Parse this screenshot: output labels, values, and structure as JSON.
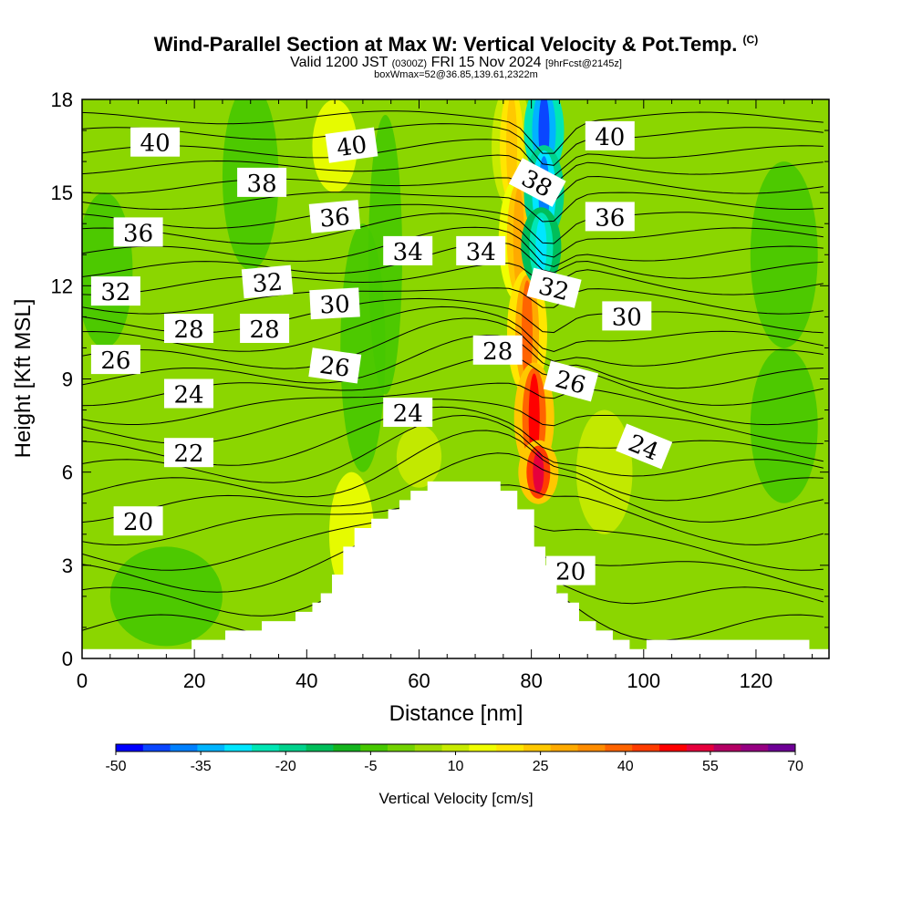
{
  "header": {
    "title": "Wind-Parallel Section at Max W: Vertical Velocity & Pot.Temp.",
    "copyright": "(C)",
    "valid_prefix": "Valid 1200 JST",
    "valid_utc": "(0300Z)",
    "valid_date": "FRI 15 Nov 2024",
    "forecast_info": "[9hrFcst@2145z]",
    "box_info": "boxWmax=52@36.85,139.61,2322m"
  },
  "colors": {
    "background_green": "#8bd600",
    "terrain_fill": "#ffffff",
    "contour_line": "#000000"
  },
  "chart_data": {
    "type": "heatmap",
    "title": "Wind-Parallel Section at Max W: Vertical Velocity & Pot.Temp.",
    "xlabel": "Distance [nm]",
    "ylabel": "Height [Kft MSL]",
    "xlim": [
      0,
      133
    ],
    "ylim": [
      0,
      18
    ],
    "xticks": [
      0,
      20,
      40,
      60,
      80,
      100,
      120
    ],
    "yticks": [
      0,
      3,
      6,
      9,
      12,
      15,
      18
    ],
    "colorbar": {
      "label": "Vertical Velocity [cm/s]",
      "levels": [
        -50,
        -45,
        -40,
        -35,
        -30,
        -25,
        -20,
        -15,
        -10,
        -5,
        0,
        5,
        10,
        15,
        20,
        25,
        30,
        35,
        40,
        45,
        50,
        55,
        60,
        65,
        70
      ],
      "tick_labels": [
        "-50",
        "-35",
        "-20",
        "-5",
        "10",
        "25",
        "40",
        "55",
        "70"
      ],
      "tick_values": [
        -50,
        -35,
        -20,
        -5,
        10,
        25,
        40,
        55,
        70
      ],
      "colors": [
        "#0000ff",
        "#0a46ff",
        "#0080ff",
        "#00b4ff",
        "#00e6ff",
        "#00e6b4",
        "#00d28c",
        "#00be5a",
        "#14b41e",
        "#46c800",
        "#72d200",
        "#a0dc00",
        "#c8eb00",
        "#f0ff00",
        "#ffe600",
        "#ffc800",
        "#ffaa00",
        "#ff8c00",
        "#ff6400",
        "#ff3c00",
        "#ff0000",
        "#e6003c",
        "#b40064",
        "#960082",
        "#6e0096"
      ]
    },
    "terrain": {
      "x": [
        0,
        19.5,
        19.5,
        25.5,
        25.5,
        32,
        32,
        38,
        38,
        41,
        41,
        42.5,
        42.5,
        44.5,
        44.5,
        46.5,
        46.5,
        48.5,
        48.5,
        51.5,
        51.5,
        54.5,
        54.5,
        56.5,
        56.5,
        58.5,
        58.5,
        61.5,
        61.5,
        74.5,
        74.5,
        77.5,
        77.5,
        80.5,
        80.5,
        82.5,
        82.5,
        84.5,
        84.5,
        86.5,
        86.5,
        88.5,
        88.5,
        91.5,
        91.5,
        94.5,
        94.5,
        97.5,
        97.5,
        100.5,
        100.5,
        129.5,
        129.5,
        133
      ],
      "height": [
        0.3,
        0.3,
        0.6,
        0.6,
        0.9,
        0.9,
        1.2,
        1.2,
        1.5,
        1.5,
        1.8,
        1.8,
        2.1,
        2.1,
        2.7,
        2.7,
        3.6,
        3.6,
        4.2,
        4.2,
        4.5,
        4.5,
        4.8,
        4.8,
        5.1,
        5.1,
        5.4,
        5.4,
        5.7,
        5.7,
        5.4,
        5.4,
        4.8,
        4.8,
        3.6,
        3.6,
        3.0,
        3.0,
        2.1,
        2.1,
        1.8,
        1.8,
        1.2,
        1.2,
        0.9,
        0.9,
        0.6,
        0.6,
        0.3,
        0.3,
        0.6,
        0.6,
        0.3,
        0.3
      ]
    },
    "velocity_features": [
      {
        "x": 30,
        "y": 15.5,
        "rx": 5,
        "ry": 3,
        "value": -5
      },
      {
        "x": 50,
        "y": 10,
        "rx": 4,
        "ry": 4,
        "value": -5
      },
      {
        "x": 54,
        "y": 13,
        "rx": 3,
        "ry": 4.5,
        "value": -5
      },
      {
        "x": 125,
        "y": 7.5,
        "rx": 6,
        "ry": 2.5,
        "value": -5
      },
      {
        "x": 125,
        "y": 13,
        "rx": 6,
        "ry": 3,
        "value": -5
      },
      {
        "x": 15,
        "y": 2,
        "rx": 10,
        "ry": 1.6,
        "value": -5
      },
      {
        "x": 4,
        "y": 12.5,
        "rx": 5,
        "ry": 2.5,
        "value": -5
      },
      {
        "x": 45,
        "y": 16.5,
        "rx": 4,
        "ry": 1.5,
        "value": 15
      },
      {
        "x": 48,
        "y": 4,
        "rx": 4,
        "ry": 2,
        "value": 15
      },
      {
        "x": 93,
        "y": 6,
        "rx": 5,
        "ry": 2,
        "value": 10
      },
      {
        "x": 60,
        "y": 6.5,
        "rx": 4,
        "ry": 1,
        "value": 10
      }
    ],
    "updraft_band": [
      {
        "x": 76,
        "y": 18,
        "value": 25
      },
      {
        "x": 77,
        "y": 15,
        "value": 30
      },
      {
        "x": 78.5,
        "y": 12,
        "value": 35
      },
      {
        "x": 80,
        "y": 9,
        "value": 45
      },
      {
        "x": 81,
        "y": 6.5,
        "value": 55
      },
      {
        "x": 81.5,
        "y": 5.5,
        "value": 60
      }
    ],
    "downdraft_band": [
      {
        "x": 82,
        "y": 18,
        "value": -45
      },
      {
        "x": 82.5,
        "y": 16,
        "value": -40
      },
      {
        "x": 82,
        "y": 14,
        "value": -35
      },
      {
        "x": 81.5,
        "y": 12.5,
        "value": -20
      }
    ],
    "theta_contour_labels": [
      {
        "text": "40",
        "x": 13,
        "y": 16.6,
        "rot": 0
      },
      {
        "text": "40",
        "x": 48,
        "y": 16.5,
        "rot": -8
      },
      {
        "text": "40",
        "x": 94,
        "y": 16.8,
        "rot": 0
      },
      {
        "text": "38",
        "x": 32,
        "y": 15.3,
        "rot": 0
      },
      {
        "text": "38",
        "x": 81,
        "y": 15.3,
        "rot": 28
      },
      {
        "text": "36",
        "x": 10,
        "y": 13.7,
        "rot": 0
      },
      {
        "text": "36",
        "x": 45,
        "y": 14.2,
        "rot": -5
      },
      {
        "text": "36",
        "x": 94,
        "y": 14.2,
        "rot": 0
      },
      {
        "text": "34",
        "x": 58,
        "y": 13.1,
        "rot": 0
      },
      {
        "text": "34",
        "x": 71,
        "y": 13.1,
        "rot": 0
      },
      {
        "text": "32",
        "x": 6,
        "y": 11.8,
        "rot": 0
      },
      {
        "text": "32",
        "x": 33,
        "y": 12.1,
        "rot": -5
      },
      {
        "text": "32",
        "x": 84,
        "y": 11.9,
        "rot": 14
      },
      {
        "text": "30",
        "x": 45,
        "y": 11.4,
        "rot": -3
      },
      {
        "text": "30",
        "x": 97,
        "y": 11.0,
        "rot": 0
      },
      {
        "text": "28",
        "x": 19,
        "y": 10.6,
        "rot": 0
      },
      {
        "text": "28",
        "x": 32.5,
        "y": 10.6,
        "rot": 0
      },
      {
        "text": "28",
        "x": 74,
        "y": 9.9,
        "rot": 0
      },
      {
        "text": "26",
        "x": 6,
        "y": 9.6,
        "rot": 0
      },
      {
        "text": "26",
        "x": 45,
        "y": 9.4,
        "rot": 8
      },
      {
        "text": "26",
        "x": 87,
        "y": 8.9,
        "rot": 15
      },
      {
        "text": "24",
        "x": 19,
        "y": 8.5,
        "rot": 0
      },
      {
        "text": "24",
        "x": 58,
        "y": 7.9,
        "rot": 0
      },
      {
        "text": "24",
        "x": 100,
        "y": 6.8,
        "rot": 22
      },
      {
        "text": "22",
        "x": 19,
        "y": 6.6,
        "rot": 0
      },
      {
        "text": "20",
        "x": 10,
        "y": 4.4,
        "rot": 0
      },
      {
        "text": "20",
        "x": 87,
        "y": 2.8,
        "rot": 0
      }
    ],
    "theta_contour_heights_at_x0": [
      0.9,
      1.8,
      2.6,
      3.3,
      4.1,
      4.8,
      5.4,
      6.0,
      6.6,
      7.3,
      7.9,
      8.5,
      9.0,
      9.6,
      10.2,
      10.8,
      11.4,
      12.0,
      12.5,
      13.0,
      13.6,
      14.1,
      14.7,
      15.2,
      15.8,
      16.3,
      16.9,
      17.4
    ]
  }
}
